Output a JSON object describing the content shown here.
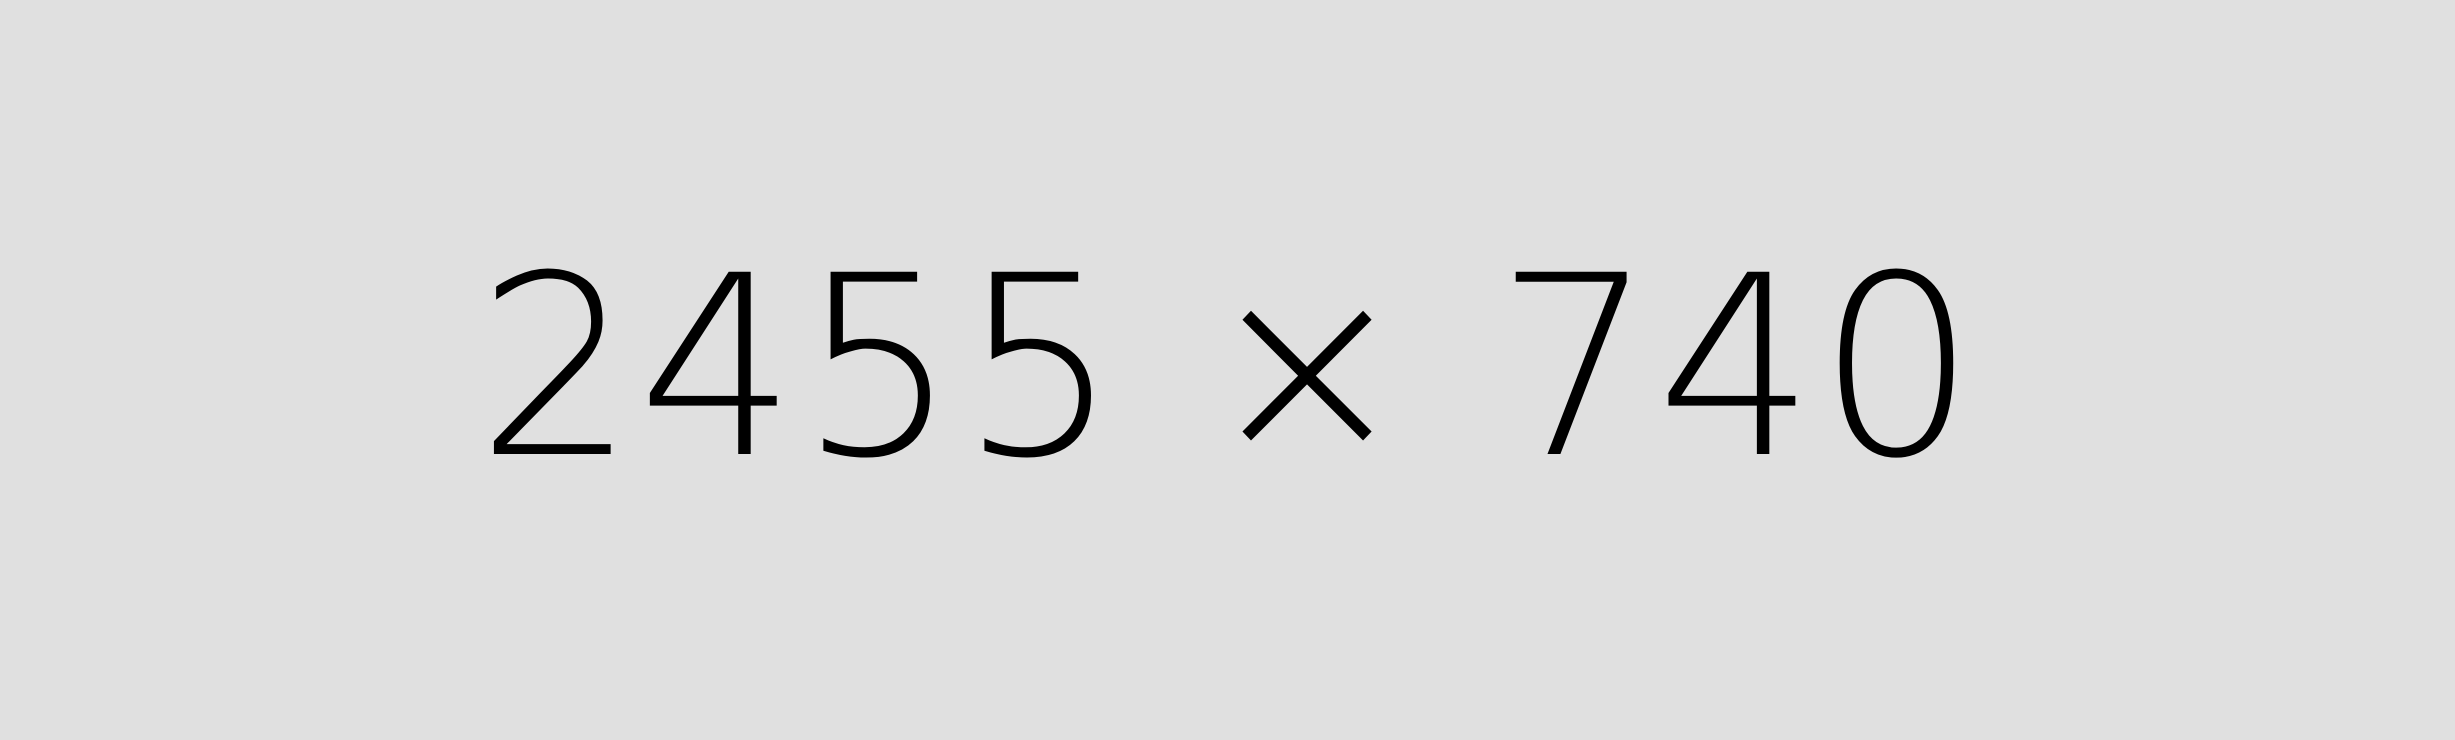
{
  "placeholder": {
    "text": "2455 × 740"
  },
  "colors": {
    "background": "#e0e0e0",
    "text": "#000000"
  }
}
